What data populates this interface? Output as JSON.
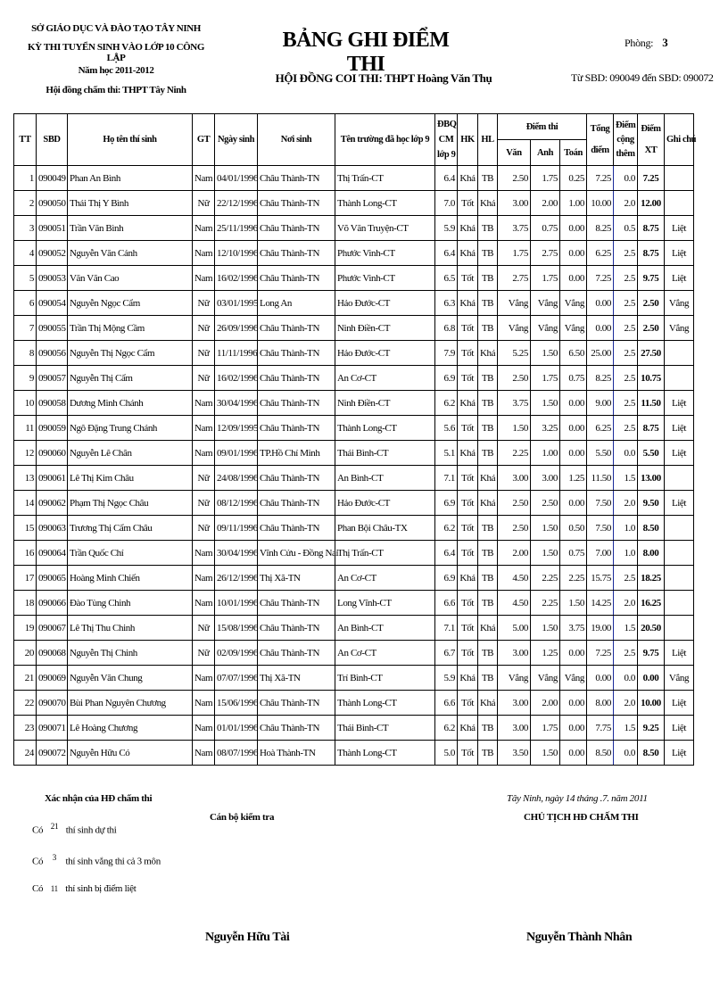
{
  "header": {
    "dept": "SỞ GIÁO DỤC VÀ ĐÀO TẠO TÂY NINH",
    "exam": "KỲ THI TUYỂN SINH VÀO LỚP 10 CÔNG LẬP",
    "year": "Năm học 2011-2012",
    "grading_council": "Hội đồng chấm thi: THPT Tây Ninh",
    "title": "BẢNG GHI ĐIỂM THI",
    "exam_council": "HỘI ĐỒNG COI THI:  THPT Hoàng Văn Thụ",
    "room_label": "Phòng:",
    "room_value": "3",
    "sbd_range": "Từ SBD: 090049  đến SBD: 090072"
  },
  "table": {
    "columns": {
      "tt": "TT",
      "sbd": "SBD",
      "name": "Họ tên thí sinh",
      "gt": "GT",
      "dob": "Ngày sinh",
      "birthplace": "Nơi sinh",
      "school": "Tên trường đã học lớp 9",
      "dbq1": "ĐBQ",
      "dbq2": "CM",
      "dbq3": "lớp 9",
      "hk": "HK",
      "hl": "HL",
      "scores": "Điểm thi",
      "van": "Văn",
      "anh": "Anh",
      "toan": "Toán",
      "total1": "Tổng",
      "total2": "điểm",
      "bonus1": "Điểm",
      "bonus2": "cộng",
      "bonus3": "thêm",
      "xt1": "Điểm",
      "xt2": "XT",
      "note": "Ghi chú"
    },
    "rows": [
      [
        "1",
        "090049",
        "Phan An Bình",
        "Nam",
        "04/01/1996",
        "Châu Thành-TN",
        "Thị Trấn-CT",
        "6.4",
        "Khá",
        "TB",
        "2.50",
        "1.75",
        "0.25",
        "7.25",
        "0.0",
        "7.25",
        ""
      ],
      [
        "2",
        "090050",
        "Thái Thị Y Bình",
        "Nữ",
        "22/12/1996",
        "Châu Thành-TN",
        "Thành Long-CT",
        "7.0",
        "Tốt",
        "Khá",
        "3.00",
        "2.00",
        "1.00",
        "10.00",
        "2.0",
        "12.00",
        ""
      ],
      [
        "3",
        "090051",
        "Trần Văn Bình",
        "Nam",
        "25/11/1996",
        "Châu Thành-TN",
        "Võ Văn Truyện-CT",
        "5.9",
        "Khá",
        "TB",
        "3.75",
        "0.75",
        "0.00",
        "8.25",
        "0.5",
        "8.75",
        "Liệt"
      ],
      [
        "4",
        "090052",
        "Nguyễn Văn Cảnh",
        "Nam",
        "12/10/1996",
        "Châu Thành-TN",
        "Phước Vinh-CT",
        "6.4",
        "Khá",
        "TB",
        "1.75",
        "2.75",
        "0.00",
        "6.25",
        "2.5",
        "8.75",
        "Liệt"
      ],
      [
        "5",
        "090053",
        "Văn Văn Cao",
        "Nam",
        "16/02/1996",
        "Châu Thành-TN",
        "Phước Vinh-CT",
        "6.5",
        "Tốt",
        "TB",
        "2.75",
        "1.75",
        "0.00",
        "7.25",
        "2.5",
        "9.75",
        "Liệt"
      ],
      [
        "6",
        "090054",
        "Nguyễn Ngọc Cẩm",
        "Nữ",
        "03/01/1995",
        "Long An",
        "Hảo Đước-CT",
        "6.3",
        "Khá",
        "TB",
        "Vắng",
        "Vắng",
        "Vắng",
        "0.00",
        "2.5",
        "2.50",
        "Vắng"
      ],
      [
        "7",
        "090055",
        "Trần Thị Mộng Cầm",
        "Nữ",
        "26/09/1996",
        "Châu Thành-TN",
        "Ninh Điền-CT",
        "6.8",
        "Tốt",
        "TB",
        "Vắng",
        "Vắng",
        "Vắng",
        "0.00",
        "2.5",
        "2.50",
        "Vắng"
      ],
      [
        "8",
        "090056",
        "Nguyễn Thị Ngọc Cẩm",
        "Nữ",
        "11/11/1996",
        "Châu Thành-TN",
        "Hảo Đước-CT",
        "7.9",
        "Tốt",
        "Khá",
        "5.25",
        "1.50",
        "6.50",
        "25.00",
        "2.5",
        "27.50",
        ""
      ],
      [
        "9",
        "090057",
        "Nguyễn Thị Cẩm",
        "Nữ",
        "16/02/1996",
        "Châu Thành-TN",
        "An Cơ-CT",
        "6.9",
        "Tốt",
        "TB",
        "2.50",
        "1.75",
        "0.75",
        "8.25",
        "2.5",
        "10.75",
        ""
      ],
      [
        "10",
        "090058",
        "Dương Minh Chánh",
        "Nam",
        "30/04/1996",
        "Châu Thành-TN",
        "Ninh Điền-CT",
        "6.2",
        "Khá",
        "TB",
        "3.75",
        "1.50",
        "0.00",
        "9.00",
        "2.5",
        "11.50",
        "Liệt"
      ],
      [
        "11",
        "090059",
        "Ngô Đặng Trung Chánh",
        "Nam",
        "12/09/1995",
        "Châu Thành-TN",
        "Thành Long-CT",
        "5.6",
        "Tốt",
        "TB",
        "1.50",
        "3.25",
        "0.00",
        "6.25",
        "2.5",
        "8.75",
        "Liệt"
      ],
      [
        "12",
        "090060",
        "Nguyễn Lê Chân",
        "Nam",
        "09/01/1996",
        "TP.Hồ Chí Minh",
        "Thái Bình-CT",
        "5.1",
        "Khá",
        "TB",
        "2.25",
        "1.00",
        "0.00",
        "5.50",
        "0.0",
        "5.50",
        "Liệt"
      ],
      [
        "13",
        "090061",
        "Lê Thị Kim Châu",
        "Nữ",
        "24/08/1996",
        "Châu Thành-TN",
        "An Bình-CT",
        "7.1",
        "Tốt",
        "Khá",
        "3.00",
        "3.00",
        "1.25",
        "11.50",
        "1.5",
        "13.00",
        ""
      ],
      [
        "14",
        "090062",
        "Phạm Thị Ngọc Châu",
        "Nữ",
        "08/12/1996",
        "Châu Thành-TN",
        "Hảo Đước-CT",
        "6.9",
        "Tốt",
        "Khá",
        "2.50",
        "2.50",
        "0.00",
        "7.50",
        "2.0",
        "9.50",
        "Liệt"
      ],
      [
        "15",
        "090063",
        "Trương Thị Cẩm Châu",
        "Nữ",
        "09/11/1996",
        "Châu Thành-TN",
        "Phan Bội Châu-TX",
        "6.2",
        "Tốt",
        "TB",
        "2.50",
        "1.50",
        "0.50",
        "7.50",
        "1.0",
        "8.50",
        ""
      ],
      [
        "16",
        "090064",
        "Trần Quốc Chí",
        "Nam",
        "30/04/1996",
        "Vĩnh Cửu - Đồng Nai",
        "Thị Trấn-CT",
        "6.4",
        "Tốt",
        "TB",
        "2.00",
        "1.50",
        "0.75",
        "7.00",
        "1.0",
        "8.00",
        ""
      ],
      [
        "17",
        "090065",
        "Hoàng Minh Chiến",
        "Nam",
        "26/12/1996",
        "Thị Xã-TN",
        "An Cơ-CT",
        "6.9",
        "Khá",
        "TB",
        "4.50",
        "2.25",
        "2.25",
        "15.75",
        "2.5",
        "18.25",
        ""
      ],
      [
        "18",
        "090066",
        "Đào Tùng Chinh",
        "Nam",
        "10/01/1996",
        "Châu Thành-TN",
        "Long Vĩnh-CT",
        "6.6",
        "Tốt",
        "TB",
        "4.50",
        "2.25",
        "1.50",
        "14.25",
        "2.0",
        "16.25",
        ""
      ],
      [
        "19",
        "090067",
        "Lê Thị Thu Chinh",
        "Nữ",
        "15/08/1996",
        "Châu Thành-TN",
        "An Bình-CT",
        "7.1",
        "Tốt",
        "Khá",
        "5.00",
        "1.50",
        "3.75",
        "19.00",
        "1.5",
        "20.50",
        ""
      ],
      [
        "20",
        "090068",
        "Nguyễn Thị Chinh",
        "Nữ",
        "02/09/1996",
        "Châu Thành-TN",
        "An Cơ-CT",
        "6.7",
        "Tốt",
        "TB",
        "3.00",
        "1.25",
        "0.00",
        "7.25",
        "2.5",
        "9.75",
        "Liệt"
      ],
      [
        "21",
        "090069",
        "Nguyễn Văn Chung",
        "Nam",
        "07/07/1996",
        "Thị Xã-TN",
        "Trí Bình-CT",
        "5.9",
        "Khá",
        "TB",
        "Vắng",
        "Vắng",
        "Vắng",
        "0.00",
        "0.0",
        "0.00",
        "Vắng"
      ],
      [
        "22",
        "090070",
        "Bùi Phan Nguyên Chương",
        "Nam",
        "15/06/1996",
        "Châu Thành-TN",
        "Thành Long-CT",
        "6.6",
        "Tốt",
        "Khá",
        "3.00",
        "2.00",
        "0.00",
        "8.00",
        "2.0",
        "10.00",
        "Liệt"
      ],
      [
        "23",
        "090071",
        "Lê Hoàng Chương",
        "Nam",
        "01/01/1996",
        "Châu Thành-TN",
        "Thái Bình-CT",
        "6.2",
        "Khá",
        "TB",
        "3.00",
        "1.75",
        "0.00",
        "7.75",
        "1.5",
        "9.25",
        "Liệt"
      ],
      [
        "24",
        "090072",
        "Nguyễn Hữu Có",
        "Nam",
        "08/07/1996",
        "Hoà Thành-TN",
        "Thành Long-CT",
        "5.0",
        "Tốt",
        "TB",
        "3.50",
        "1.50",
        "0.00",
        "8.50",
        "0.0",
        "8.50",
        "Liệt"
      ]
    ]
  },
  "footer": {
    "confirm": "Xác nhận của HĐ chấm thi",
    "co": "Có",
    "count1": "21",
    "text1": "thí sinh dự thi",
    "count2": "3",
    "text2": "thí sinh vắng thi cả 3 môn",
    "count3": "11",
    "text3": "thí sinh bị điểm liệt",
    "inspector_title": "Cán bộ kiểm tra",
    "inspector_name": "Nguyễn Hữu Tài",
    "date_place": "Tây Ninh, ngày 14 tháng .7. năm 2011",
    "chair_title": "CHỦ TỊCH HĐ CHẤM THI",
    "chair_name": "Nguyễn Thành Nhân"
  }
}
